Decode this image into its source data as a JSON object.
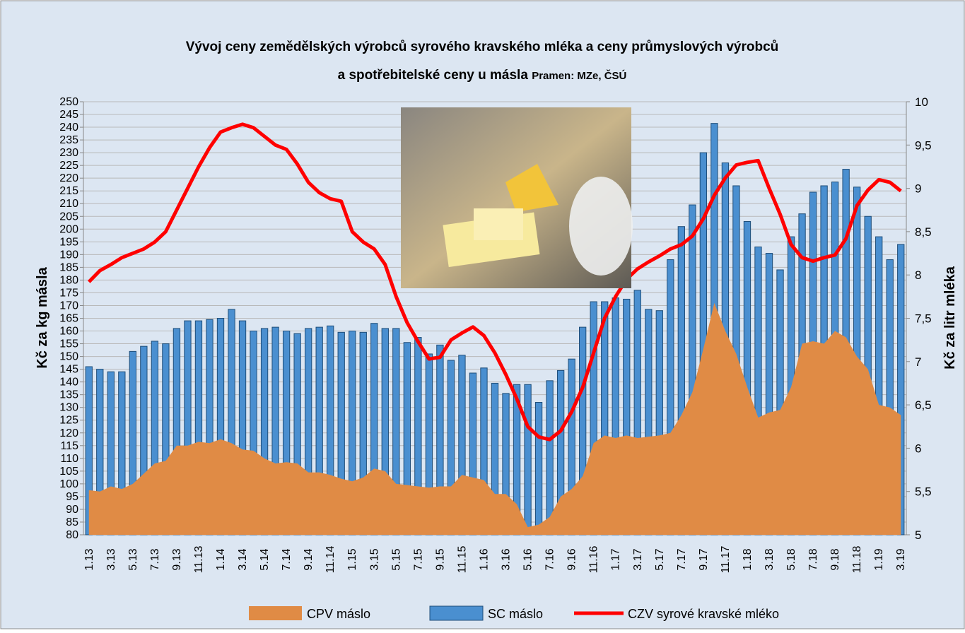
{
  "chart_data": {
    "type": "combo",
    "title": "Vývoj ceny zemědělských výrobců syrového kravského mléka a ceny průmyslových výrobců",
    "subtitle": "a spotřebitelské ceny u másla",
    "source": "Pramen: MZe, ČSÚ",
    "y_label": "Kč za kg másla",
    "y2_label": "Kč za litr mléka",
    "categories": [
      "1.13",
      null,
      "3.13",
      null,
      "5.13",
      null,
      "7.13",
      null,
      "9.13",
      null,
      "11.13",
      null,
      "1.14",
      null,
      "3.14",
      null,
      "5.14",
      null,
      "7.14",
      null,
      "9.14",
      null,
      "11.14",
      null,
      "1.15",
      null,
      "3.15",
      null,
      "5.15",
      null,
      "7.15",
      null,
      "9.15",
      null,
      "11.15",
      null,
      "1.16",
      null,
      "3.16",
      null,
      "5.16",
      null,
      "7.16",
      null,
      "9.16",
      null,
      "11.16",
      null,
      "1.17",
      null,
      "3.17",
      null,
      "5.17",
      null,
      "7.17",
      null,
      "9.17",
      null,
      "11.17",
      null,
      "1.18",
      null,
      "3.18",
      null,
      "5.18",
      null,
      "7.18",
      null,
      "9.18",
      null,
      "11.18",
      null,
      "1.19",
      null,
      "3.19"
    ],
    "series": [
      {
        "name": "CPV máslo",
        "type": "area",
        "color": "#e08b45",
        "values": [
          97.5,
          97,
          99,
          98,
          100,
          104,
          108,
          109,
          115,
          115,
          116.5,
          116,
          117.5,
          116,
          113.5,
          113,
          110,
          108,
          108.5,
          108,
          104.5,
          104.5,
          103.5,
          102,
          101,
          102.5,
          106,
          105,
          100,
          99.5,
          99,
          98.5,
          99,
          99,
          103.5,
          102.5,
          101.5,
          96,
          96,
          92,
          83,
          84,
          87,
          95,
          98,
          103,
          116,
          119,
          118,
          119,
          118,
          118.5,
          119,
          120,
          127,
          136,
          153,
          171,
          160,
          151,
          138,
          126,
          128,
          129,
          138,
          155,
          156,
          155,
          160,
          157.5,
          150,
          145,
          131,
          130,
          127
        ]
      },
      {
        "name": "SC máslo",
        "type": "bar",
        "color": "#4a8fd0",
        "values": [
          146,
          145,
          144,
          144,
          152,
          154,
          156,
          155,
          161,
          164,
          164,
          164.5,
          165,
          168.5,
          164,
          160,
          161,
          161.5,
          160,
          159,
          161,
          161.5,
          162,
          159.5,
          160,
          159.5,
          163,
          161,
          161,
          155.5,
          157.5,
          151,
          154.5,
          148.5,
          150.5,
          143.5,
          145.5,
          139.5,
          135.5,
          139,
          139,
          132,
          140.5,
          144.5,
          149,
          161.5,
          171.5,
          171.5,
          173,
          172.5,
          176,
          168.5,
          168,
          188,
          201,
          209.5,
          230,
          241.5,
          226,
          217,
          203,
          193,
          190.5,
          184,
          197,
          206,
          214.5,
          217,
          218.5,
          223.5,
          216.5,
          205,
          197,
          188,
          194
        ]
      },
      {
        "name": "CZV syrové kravské mléko",
        "type": "line",
        "axis": "y2",
        "color": "#ff0000",
        "values": [
          7.92,
          8.05,
          8.12,
          8.2,
          8.25,
          8.3,
          8.38,
          8.5,
          8.75,
          9.0,
          9.25,
          9.47,
          9.65,
          9.7,
          9.74,
          9.7,
          9.6,
          9.5,
          9.45,
          9.28,
          9.07,
          8.95,
          8.88,
          8.85,
          8.5,
          8.38,
          8.3,
          8.12,
          7.75,
          7.45,
          7.23,
          7.03,
          7.05,
          7.25,
          7.33,
          7.4,
          7.3,
          7.1,
          6.85,
          6.57,
          6.25,
          6.13,
          6.1,
          6.2,
          6.42,
          6.7,
          7.1,
          7.5,
          7.75,
          7.95,
          8.07,
          8.15,
          8.22,
          8.3,
          8.35,
          8.45,
          8.65,
          8.92,
          9.12,
          9.27,
          9.3,
          9.32,
          9.0,
          8.7,
          8.35,
          8.2,
          8.16,
          8.2,
          8.23,
          8.42,
          8.8,
          8.98,
          9.1,
          9.07,
          8.97
        ]
      }
    ],
    "ylim": [
      80,
      250
    ],
    "yticks": [
      80,
      85,
      90,
      95,
      100,
      105,
      110,
      115,
      120,
      125,
      130,
      135,
      140,
      145,
      150,
      155,
      160,
      165,
      170,
      175,
      180,
      185,
      190,
      195,
      200,
      205,
      210,
      215,
      220,
      225,
      230,
      235,
      240,
      245,
      250
    ],
    "y2lim": [
      5,
      10
    ],
    "y2ticks": [
      5,
      {
        "value": 5.5,
        "label": "5,5"
      },
      6,
      {
        "value": 6.5,
        "label": "6,5"
      },
      7,
      {
        "value": 7.5,
        "label": "7,5"
      },
      8,
      {
        "value": 8.5,
        "label": "8,5"
      },
      9,
      {
        "value": 9.5,
        "label": "9,5"
      },
      10
    ],
    "grid": true,
    "legend": "bottom"
  }
}
